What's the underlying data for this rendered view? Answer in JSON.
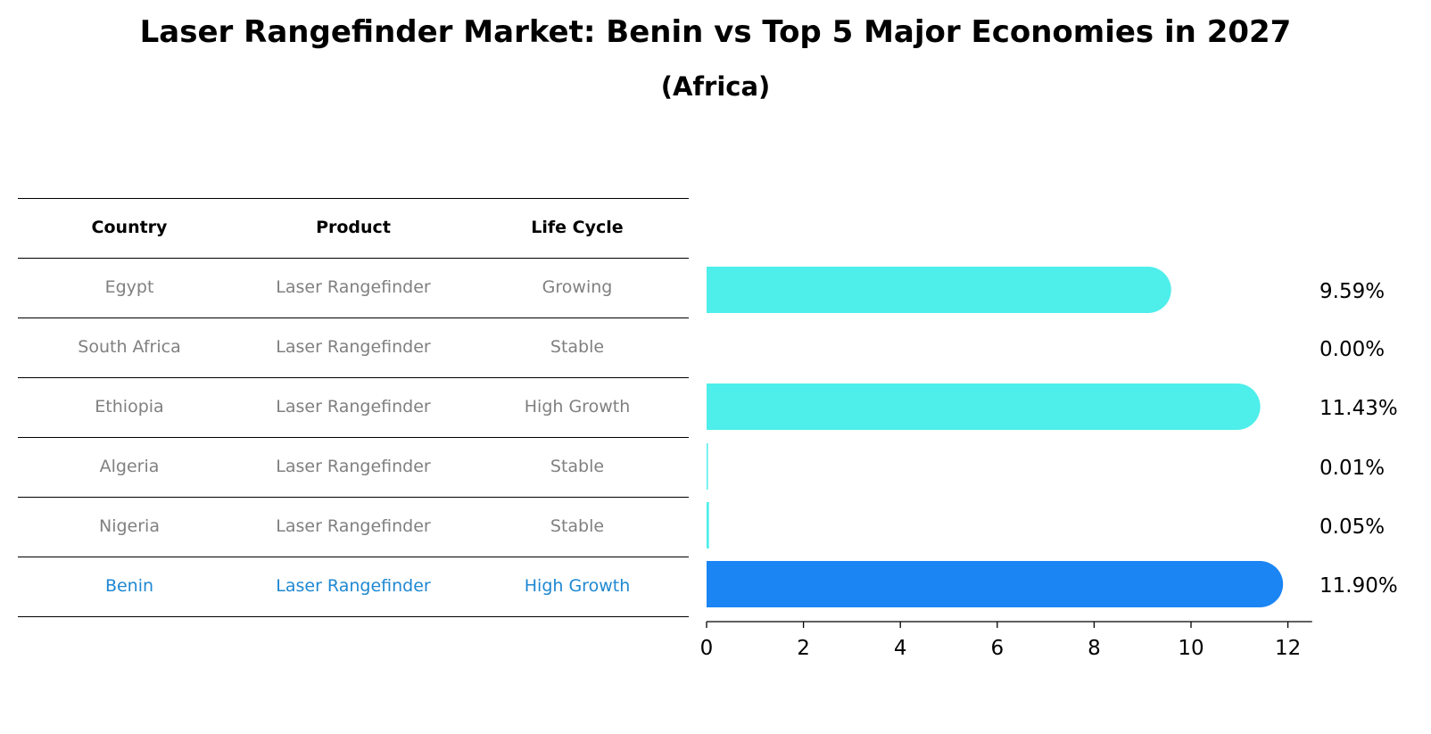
{
  "title": "Laser Rangefinder Market: Benin vs Top 5 Major Economies in 2027",
  "subtitle": "(Africa)",
  "table": {
    "headers": [
      "Country",
      "Product",
      "Life Cycle"
    ],
    "rows": [
      [
        "Egypt",
        "Laser Rangefinder",
        "Growing"
      ],
      [
        "South Africa",
        "Laser Rangefinder",
        "Stable"
      ],
      [
        "Ethiopia",
        "Laser Rangefinder",
        "High Growth"
      ],
      [
        "Algeria",
        "Laser Rangefinder",
        "Stable"
      ],
      [
        "Nigeria",
        "Laser Rangefinder",
        "Stable"
      ],
      [
        "Benin",
        "Laser Rangefinder",
        "High Growth"
      ]
    ],
    "highlight_row": 5
  },
  "chart_data": {
    "type": "bar",
    "orientation": "horizontal",
    "categories": [
      "Egypt",
      "South Africa",
      "Ethiopia",
      "Algeria",
      "Nigeria",
      "Benin"
    ],
    "values": [
      9.59,
      0.0,
      11.43,
      0.01,
      0.05,
      11.9
    ],
    "value_labels": [
      "9.59%",
      "0.00%",
      "11.43%",
      "0.01%",
      "0.05%",
      "11.90%"
    ],
    "xticks": [
      0,
      2,
      4,
      6,
      8,
      10,
      12
    ],
    "xlim": [
      0,
      12.5
    ],
    "colors": {
      "default": "#4eeeea",
      "highlight": "#1a85f3"
    },
    "highlight": "Benin",
    "grid": false
  },
  "colors": {
    "text_muted": "#808080",
    "highlight_text": "#1e88d2"
  }
}
